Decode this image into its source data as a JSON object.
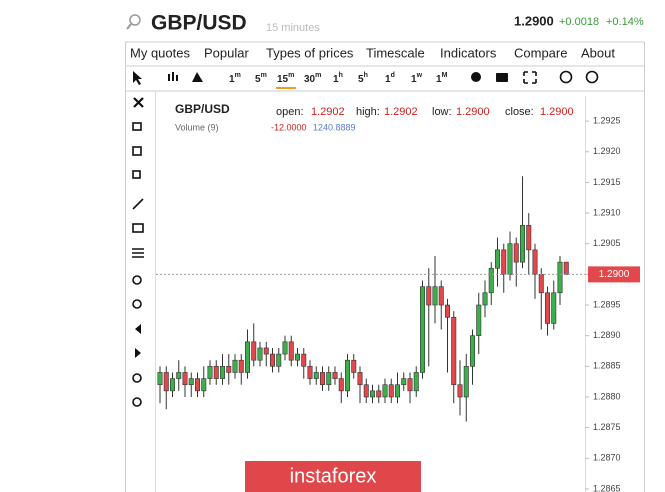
{
  "header": {
    "symbol": "GBP/USD",
    "interval": "15 minutes",
    "price": "1.2900",
    "change": "+0.0018",
    "change_pct": "+0.14%"
  },
  "menu": [
    "My quotes",
    "Popular",
    "Types of prices",
    "Timescale",
    "Indicators",
    "Compare",
    "About"
  ],
  "timeframes": [
    {
      "num": "1",
      "unit": "m"
    },
    {
      "num": "5",
      "unit": "m"
    },
    {
      "num": "15",
      "unit": "m"
    },
    {
      "num": "30",
      "unit": "m"
    },
    {
      "num": "1",
      "unit": "h"
    },
    {
      "num": "5",
      "unit": "h"
    },
    {
      "num": "1",
      "unit": "d"
    },
    {
      "num": "1",
      "unit": "w"
    },
    {
      "num": "1",
      "unit": "M"
    }
  ],
  "legend": {
    "open_label": "open:",
    "open": "1.2902",
    "high_label": "high:",
    "high": "1.2902",
    "low_label": "low:",
    "low": "1.2900",
    "close_label": "close:",
    "close": "1.2900",
    "volume_label": "Volume (9)",
    "volume_change": "-12.0000",
    "volume_value": "1240.8889"
  },
  "watermark": "instaforex",
  "chart_data": {
    "type": "candlestick",
    "ylim": [
      1.28645,
      1.29291
    ],
    "yticks": [
      1.2925,
      {
        "value": 1.292,
        "label": "1.2920"
      },
      1.2915,
      {
        "value": 1.291,
        "label": "1.2910"
      },
      1.2905,
      {
        "value": 1.29,
        "label": "1.2900"
      },
      1.2895,
      {
        "value": 1.289,
        "label": "1.2890"
      },
      1.2885,
      {
        "value": 1.288,
        "label": "1.2880"
      },
      1.2875,
      {
        "value": 1.287,
        "label": "1.2870"
      },
      1.2865
    ],
    "last_price": {
      "value": 1.29,
      "label": "1.2900"
    },
    "up_color": "#3cae4a",
    "down_color": "#e2474b",
    "last_color": "#e2474b",
    "series": [
      {
        "name": "GBP/USD",
        "open": [
          1.2882,
          1.2884,
          1.2881,
          1.2883,
          1.2884,
          1.2882,
          1.2883,
          1.2881,
          1.2883,
          1.2885,
          1.2883,
          1.2885,
          1.2884,
          1.2886,
          1.2884,
          1.2889,
          1.2886,
          1.2888,
          1.2887,
          1.2885,
          1.2887,
          1.2889,
          1.2886,
          1.2887,
          1.2885,
          1.2883,
          1.2884,
          1.2882,
          1.2884,
          1.2883,
          1.2881,
          1.2886,
          1.2884,
          1.2882,
          1.288,
          1.2881,
          1.288,
          1.2882,
          1.288,
          1.2882,
          1.2883,
          1.2881,
          1.2884,
          1.2898,
          1.2895,
          1.2898,
          1.2895,
          1.2893,
          1.2882,
          1.288,
          1.2885,
          1.289,
          1.2895,
          1.2897,
          1.2901,
          1.2904,
          1.29,
          1.2905,
          1.2902,
          1.2908,
          1.2904,
          1.29,
          1.2897,
          1.2892,
          1.2897,
          1.2902
        ],
        "high": [
          1.2885,
          1.2885,
          1.2884,
          1.2886,
          1.2885,
          1.2884,
          1.2884,
          1.2885,
          1.2886,
          1.2886,
          1.2887,
          1.2887,
          1.2887,
          1.2887,
          1.2891,
          1.2892,
          1.2889,
          1.2889,
          1.2888,
          1.2888,
          1.289,
          1.289,
          1.2888,
          1.2888,
          1.2886,
          1.2885,
          1.2885,
          1.2885,
          1.2885,
          1.2884,
          1.2887,
          1.2887,
          1.2885,
          1.2883,
          1.2882,
          1.2882,
          1.2883,
          1.2883,
          1.2884,
          1.2884,
          1.2884,
          1.2885,
          1.2899,
          1.2901,
          1.2903,
          1.2899,
          1.2896,
          1.2894,
          1.2886,
          1.2887,
          1.2891,
          1.2897,
          1.2899,
          1.2902,
          1.2906,
          1.2905,
          1.2907,
          1.2906,
          1.2916,
          1.291,
          1.2905,
          1.2901,
          1.2898,
          1.2899,
          1.2903,
          1.2902
        ],
        "low": [
          1.2879,
          1.2878,
          1.288,
          1.2881,
          1.288,
          1.288,
          1.288,
          1.288,
          1.2882,
          1.2882,
          1.2882,
          1.2882,
          1.2883,
          1.2882,
          1.2883,
          1.2885,
          1.2885,
          1.2885,
          1.2884,
          1.2884,
          1.2886,
          1.2885,
          1.2885,
          1.2883,
          1.2882,
          1.2882,
          1.2881,
          1.2881,
          1.2882,
          1.2879,
          1.288,
          1.2883,
          1.2879,
          1.2879,
          1.2879,
          1.2879,
          1.2879,
          1.2879,
          1.2879,
          1.2881,
          1.2879,
          1.288,
          1.2883,
          1.2885,
          1.2892,
          1.2891,
          1.2884,
          1.2879,
          1.2877,
          1.2876,
          1.2882,
          1.2887,
          1.2893,
          1.2895,
          1.2898,
          1.2897,
          1.2899,
          1.2898,
          1.2901,
          1.29,
          1.2896,
          1.2891,
          1.289,
          1.2891,
          1.2895,
          1.29
        ],
        "close": [
          1.2884,
          1.2881,
          1.2883,
          1.2884,
          1.2882,
          1.2883,
          1.2881,
          1.2883,
          1.2885,
          1.2883,
          1.2885,
          1.2884,
          1.2886,
          1.2884,
          1.2889,
          1.2886,
          1.2888,
          1.2887,
          1.2885,
          1.2887,
          1.2889,
          1.2886,
          1.2887,
          1.2885,
          1.2883,
          1.2884,
          1.2882,
          1.2884,
          1.2883,
          1.2881,
          1.2886,
          1.2884,
          1.2882,
          1.288,
          1.2881,
          1.288,
          1.2882,
          1.288,
          1.2882,
          1.2883,
          1.2881,
          1.2884,
          1.2898,
          1.2895,
          1.2898,
          1.2895,
          1.2893,
          1.2882,
          1.288,
          1.2885,
          1.289,
          1.2895,
          1.2897,
          1.2901,
          1.2904,
          1.29,
          1.2905,
          1.2902,
          1.2908,
          1.2904,
          1.29,
          1.2897,
          1.2892,
          1.2897,
          1.2902,
          1.29
        ]
      }
    ]
  }
}
